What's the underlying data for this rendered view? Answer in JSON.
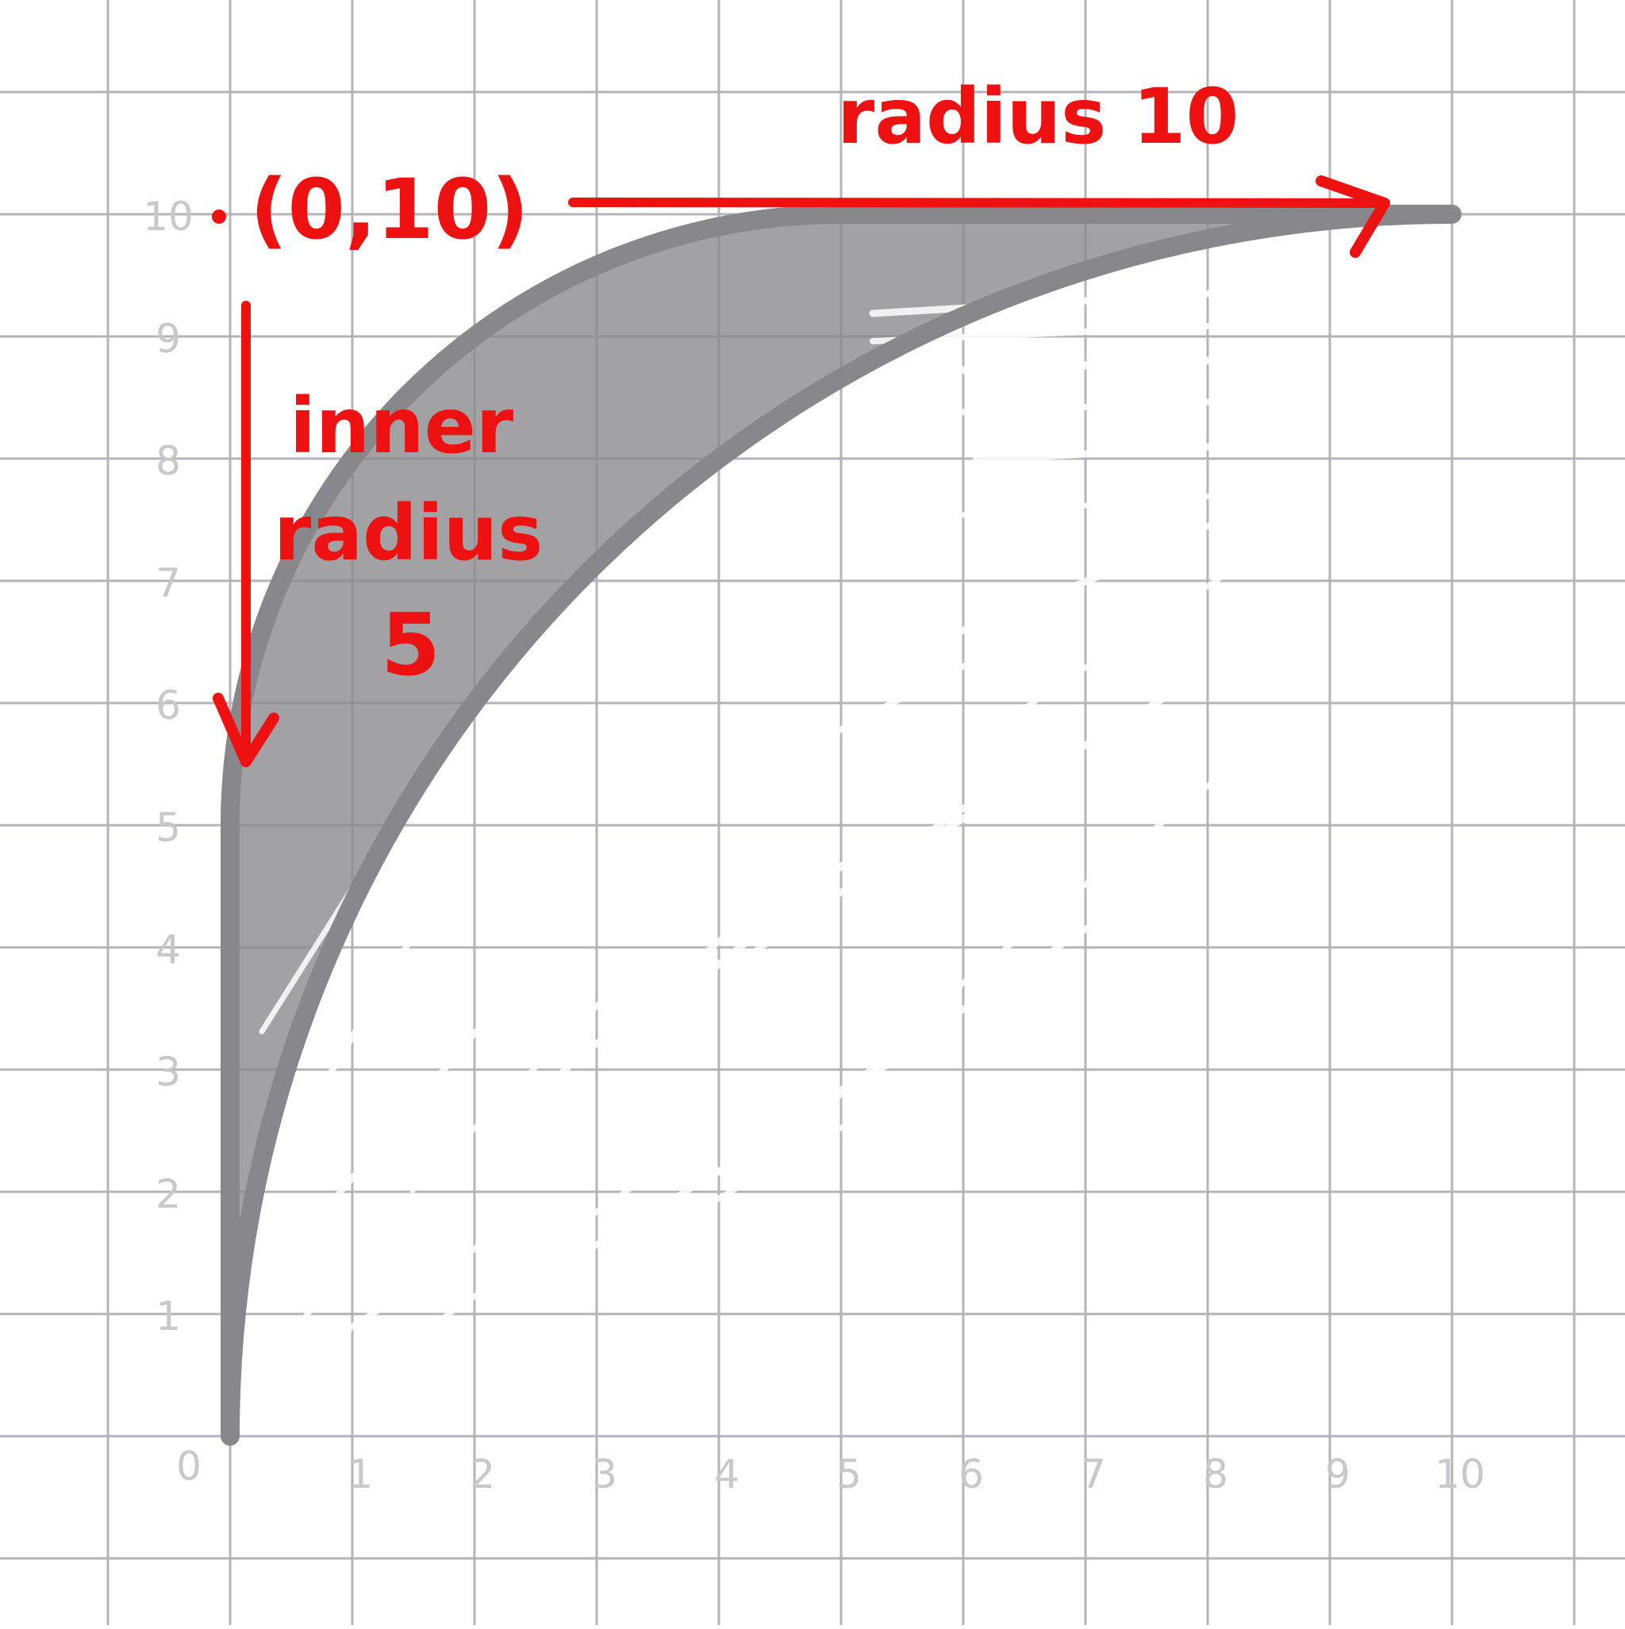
{
  "diagram": {
    "x_tick_labels": [
      "0",
      "1",
      "2",
      "3",
      "4",
      "5",
      "6",
      "7",
      "8",
      "9",
      "10"
    ],
    "y_tick_labels": [
      "0",
      "1",
      "2",
      "3",
      "4",
      "5",
      "6",
      "7",
      "8",
      "9",
      "10"
    ],
    "center_point_label": "(0,10)",
    "outer_radius_label": "radius 10",
    "inner_radius_label_line1": "inner",
    "inner_radius_label_line2": "radius",
    "inner_radius_label_line3": "5",
    "center": [
      0,
      10
    ],
    "inner_radius": 5,
    "outer_radius": 10,
    "colors": {
      "annotation": "#ee1111",
      "shape": "#88888c",
      "grid": "#b4b4b8",
      "tick_text": "#c8c8ca",
      "background": "#ffffff"
    }
  }
}
